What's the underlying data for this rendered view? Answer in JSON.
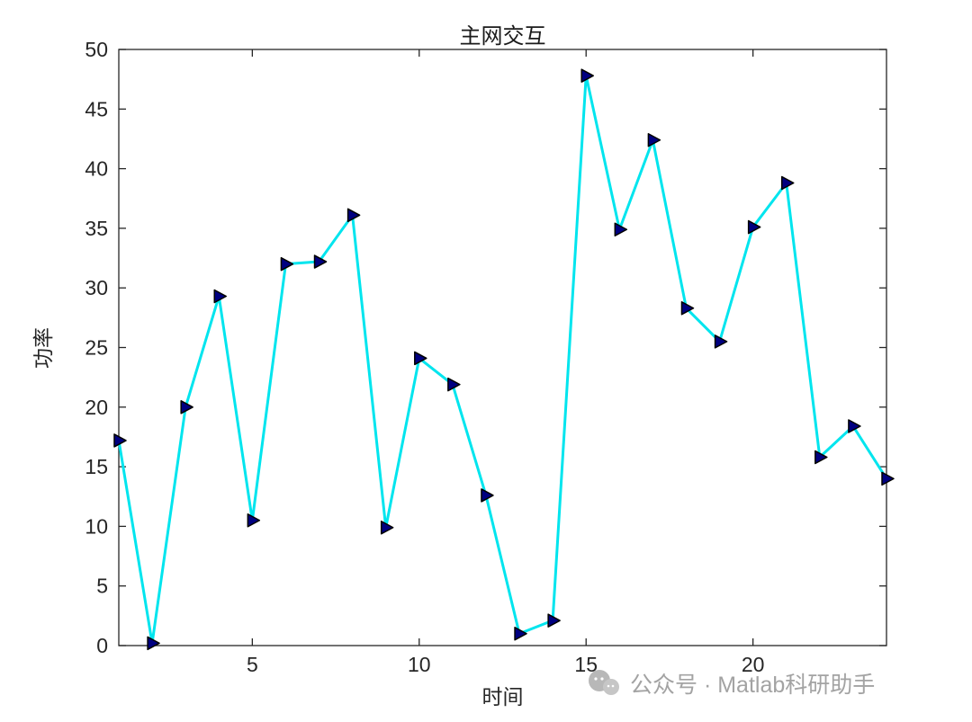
{
  "figure": {
    "background": "#ffffff"
  },
  "chart_data": {
    "type": "line",
    "title": "主网交互",
    "xlabel": "时间",
    "ylabel": "功率",
    "x": [
      1,
      2,
      3,
      4,
      5,
      6,
      7,
      8,
      9,
      10,
      11,
      12,
      13,
      14,
      15,
      16,
      17,
      18,
      19,
      20,
      21,
      22,
      23,
      24
    ],
    "values": [
      17.2,
      0.2,
      20.0,
      29.3,
      10.5,
      32.0,
      32.2,
      36.1,
      9.9,
      24.1,
      21.9,
      12.6,
      1.0,
      2.1,
      47.8,
      34.9,
      42.4,
      28.3,
      25.5,
      35.1,
      38.8,
      15.8,
      18.4,
      14.0
    ],
    "xlim": [
      1,
      24
    ],
    "ylim": [
      0,
      50
    ],
    "xticks": [
      5,
      10,
      15,
      20
    ],
    "yticks": [
      0,
      5,
      10,
      15,
      20,
      25,
      30,
      35,
      40,
      45,
      50
    ],
    "grid": false,
    "legend": null,
    "line_color": "#00e5ee",
    "line_width": 3,
    "marker": "right-triangle",
    "marker_fill": "#000080",
    "marker_edge": "#000000",
    "axis_color": "#262626"
  },
  "watermark": {
    "text": "公众号 · Matlab科研助手",
    "color": "#a3a3a3",
    "icon": "wechat-icon"
  }
}
